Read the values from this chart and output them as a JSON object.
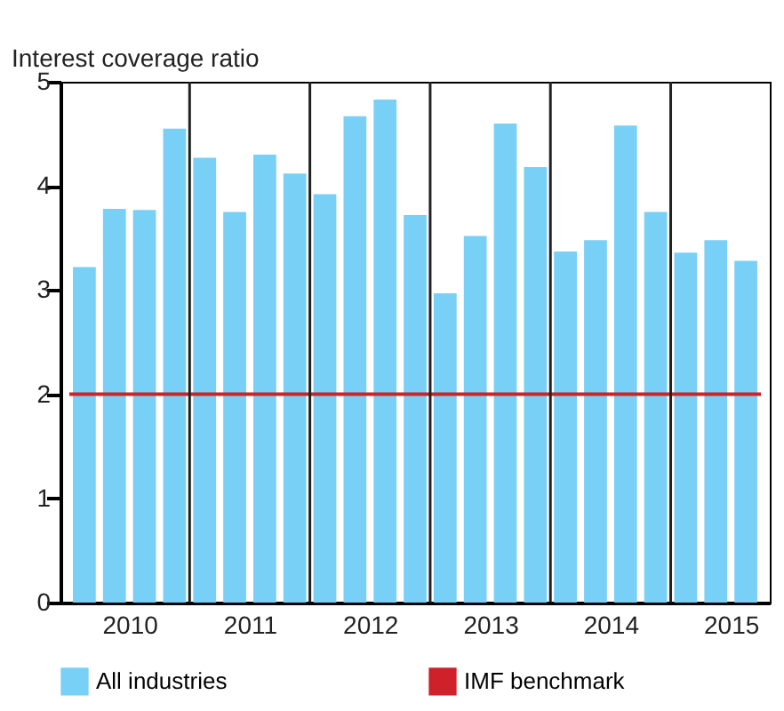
{
  "chart_data": {
    "type": "bar",
    "ylabel": "Interest coverage ratio",
    "x": [
      2010.125,
      2010.375,
      2010.625,
      2010.875,
      2011.125,
      2011.375,
      2011.625,
      2011.875,
      2012.125,
      2012.375,
      2012.625,
      2012.875,
      2013.125,
      2013.375,
      2013.625,
      2013.875,
      2014.125,
      2014.375,
      2014.625,
      2014.875,
      2015.125,
      2015.375,
      2015.625
    ],
    "series": [
      {
        "name": "All industries",
        "color": "#79d0f6",
        "values": [
          3.22,
          3.78,
          3.77,
          4.55,
          4.27,
          3.75,
          4.3,
          4.12,
          3.92,
          4.67,
          4.83,
          3.72,
          2.97,
          3.52,
          4.6,
          4.18,
          3.37,
          3.48,
          4.58,
          3.75,
          3.36,
          3.48,
          3.28
        ]
      },
      {
        "name": "IMF benchmark",
        "type": "line",
        "color": "#d0202a",
        "x": [
          2010,
          2015.75
        ],
        "values": [
          2,
          2
        ]
      }
    ],
    "xlim": [
      2010,
      2015.75
    ],
    "xticks": [
      {
        "value": 2010.5,
        "label": "2010"
      },
      {
        "value": 2011.5,
        "label": "2011"
      },
      {
        "value": 2012.5,
        "label": "2012"
      },
      {
        "value": 2013.5,
        "label": "2013"
      },
      {
        "value": 2014.5,
        "label": "2014"
      },
      {
        "value": 2015.5,
        "label": "2015"
      }
    ],
    "ylim": [
      0,
      5
    ],
    "yticks": [
      0,
      1,
      2,
      3,
      4,
      5
    ],
    "ref_lines": [
      {
        "axis": "x",
        "value": 2011,
        "color": "#222222"
      },
      {
        "axis": "x",
        "value": 2012,
        "color": "#222222"
      },
      {
        "axis": "x",
        "value": 2013,
        "color": "#222222"
      },
      {
        "axis": "x",
        "value": 2014,
        "color": "#222222"
      },
      {
        "axis": "x",
        "value": 2015,
        "color": "#222222"
      }
    ],
    "grid": false,
    "legend": "bottom"
  }
}
